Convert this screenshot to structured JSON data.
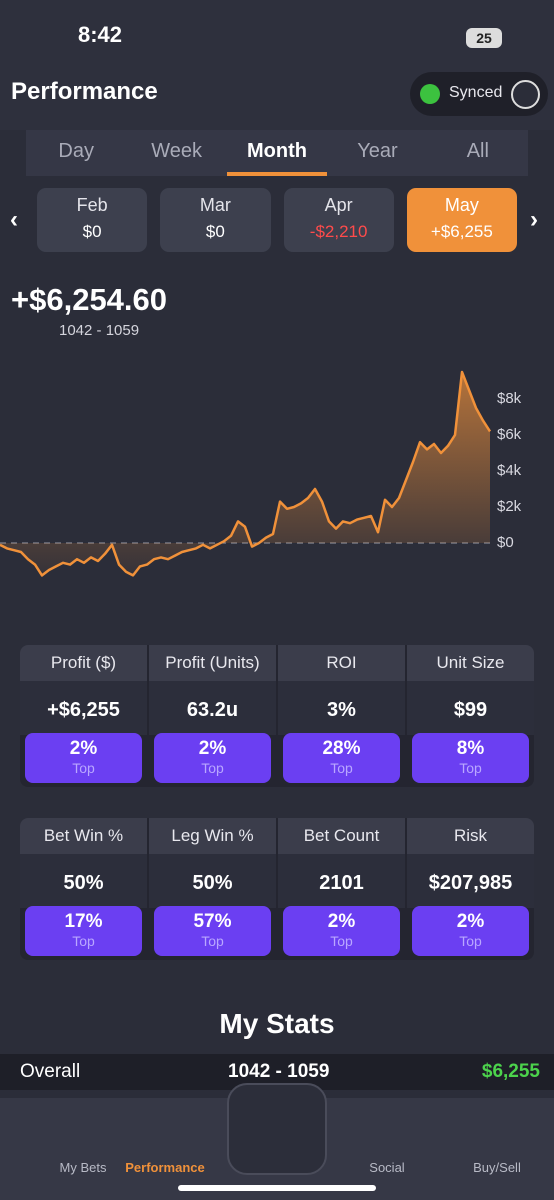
{
  "status_bar": {
    "time": "8:42",
    "battery": "25"
  },
  "header": {
    "title": "Performance",
    "sync_label": "Synced"
  },
  "tabs": [
    "Day",
    "Week",
    "Month",
    "Year",
    "All"
  ],
  "months": [
    {
      "label": "Feb",
      "value": "$0"
    },
    {
      "label": "Mar",
      "value": "$0"
    },
    {
      "label": "Apr",
      "value": "-$2,210"
    },
    {
      "label": "May",
      "value": "+$6,255"
    }
  ],
  "summary": {
    "total": "+$6,254.60",
    "record": "1042 - 1059"
  },
  "chart_data": {
    "type": "line",
    "color": "#f0913a",
    "values": [
      -100,
      -300,
      -400,
      -500,
      -900,
      -1200,
      -1800,
      -1500,
      -1300,
      -1100,
      -1200,
      -900,
      -1100,
      -800,
      -1000,
      -600,
      -100,
      -1200,
      -1600,
      -1800,
      -1300,
      -1200,
      -900,
      -800,
      -900,
      -700,
      -500,
      -400,
      -300,
      -100,
      -300,
      -100,
      100,
      400,
      1200,
      900,
      -200,
      0,
      300,
      500,
      2300,
      1900,
      2000,
      2200,
      2500,
      3000,
      2300,
      1200,
      800,
      1200,
      1100,
      1300,
      1400,
      1500,
      600,
      2400,
      2000,
      2500,
      3500,
      4500,
      5600,
      5200,
      5500,
      5000,
      5400,
      6000,
      9500,
      8500,
      7500,
      6800,
      6200
    ],
    "ylim": [
      -2000,
      10000
    ],
    "yticks": [
      {
        "value": 0,
        "label": "$0"
      },
      {
        "value": 2000,
        "label": "$2k"
      },
      {
        "value": 4000,
        "label": "$4k"
      },
      {
        "value": 6000,
        "label": "$6k"
      },
      {
        "value": 8000,
        "label": "$8k"
      }
    ]
  },
  "stats_top": [
    {
      "label": "Profit ($)",
      "value": "+$6,255",
      "rank": "2%",
      "rank_label": "Top"
    },
    {
      "label": "Profit (Units)",
      "value": "63.2u",
      "rank": "2%",
      "rank_label": "Top"
    },
    {
      "label": "ROI",
      "value": "3%",
      "rank": "28%",
      "rank_label": "Top"
    },
    {
      "label": "Unit Size",
      "value": "$99",
      "rank": "8%",
      "rank_label": "Top"
    }
  ],
  "stats_bottom": [
    {
      "label": "Bet Win %",
      "value": "50%",
      "rank": "17%",
      "rank_label": "Top"
    },
    {
      "label": "Leg Win %",
      "value": "50%",
      "rank": "57%",
      "rank_label": "Top"
    },
    {
      "label": "Bet Count",
      "value": "2101",
      "rank": "2%",
      "rank_label": "Top"
    },
    {
      "label": "Risk",
      "value": "$207,985",
      "rank": "2%",
      "rank_label": "Top"
    }
  ],
  "my_stats": {
    "title": "My Stats",
    "overall_label": "Overall",
    "overall_record": "1042 - 1059",
    "overall_profit": "$6,255"
  },
  "nav": [
    "My Bets",
    "Performance",
    "Social",
    "Buy/Sell"
  ]
}
